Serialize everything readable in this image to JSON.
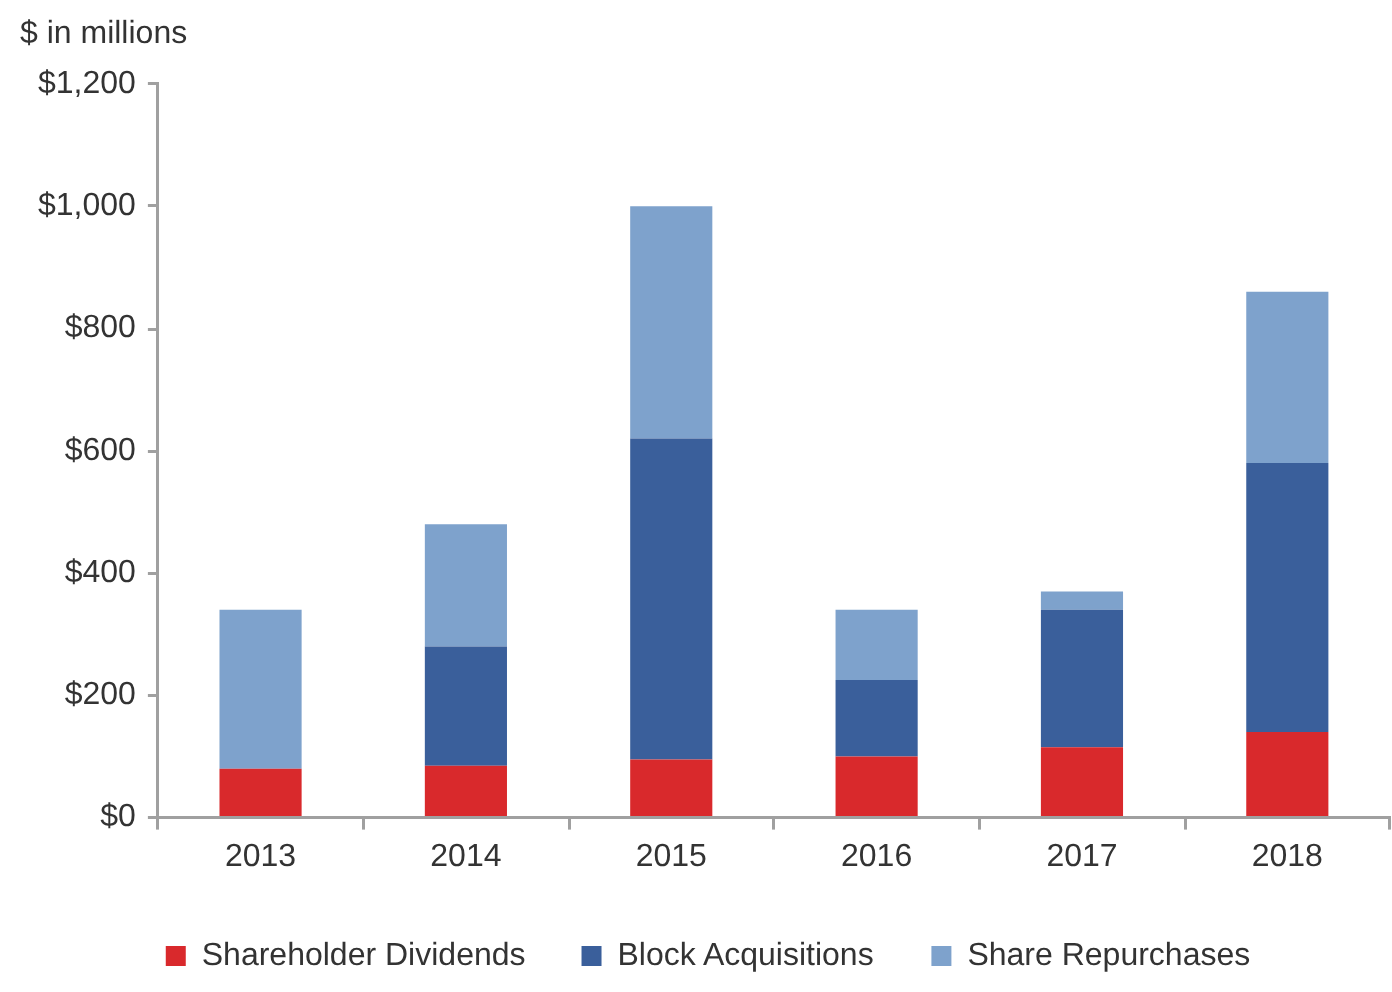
{
  "chart_data": {
    "type": "bar",
    "ylabel": "$ in millions",
    "categories": [
      "2013",
      "2014",
      "2015",
      "2016",
      "2017",
      "2018"
    ],
    "series": [
      {
        "name": "Shareholder Dividends",
        "color": "#d9292c",
        "values": [
          80,
          85,
          95,
          100,
          115,
          140
        ]
      },
      {
        "name": "Block Acquisitions",
        "color": "#3a5f9b",
        "values": [
          0,
          195,
          525,
          125,
          225,
          440
        ]
      },
      {
        "name": "Share Repurchases",
        "color": "#7ea2cc",
        "values": [
          260,
          200,
          380,
          115,
          30,
          280
        ]
      }
    ],
    "stacked": true,
    "ylim": [
      0,
      1200
    ],
    "yticks": [
      {
        "value": 0,
        "label": "$0"
      },
      {
        "value": 200,
        "label": "$200"
      },
      {
        "value": 400,
        "label": "$400"
      },
      {
        "value": 600,
        "label": "$600"
      },
      {
        "value": 800,
        "label": "$800"
      },
      {
        "value": 1000,
        "label": "$1,000"
      },
      {
        "value": 1200,
        "label": "$1,200"
      }
    ],
    "legend": "bottom"
  }
}
